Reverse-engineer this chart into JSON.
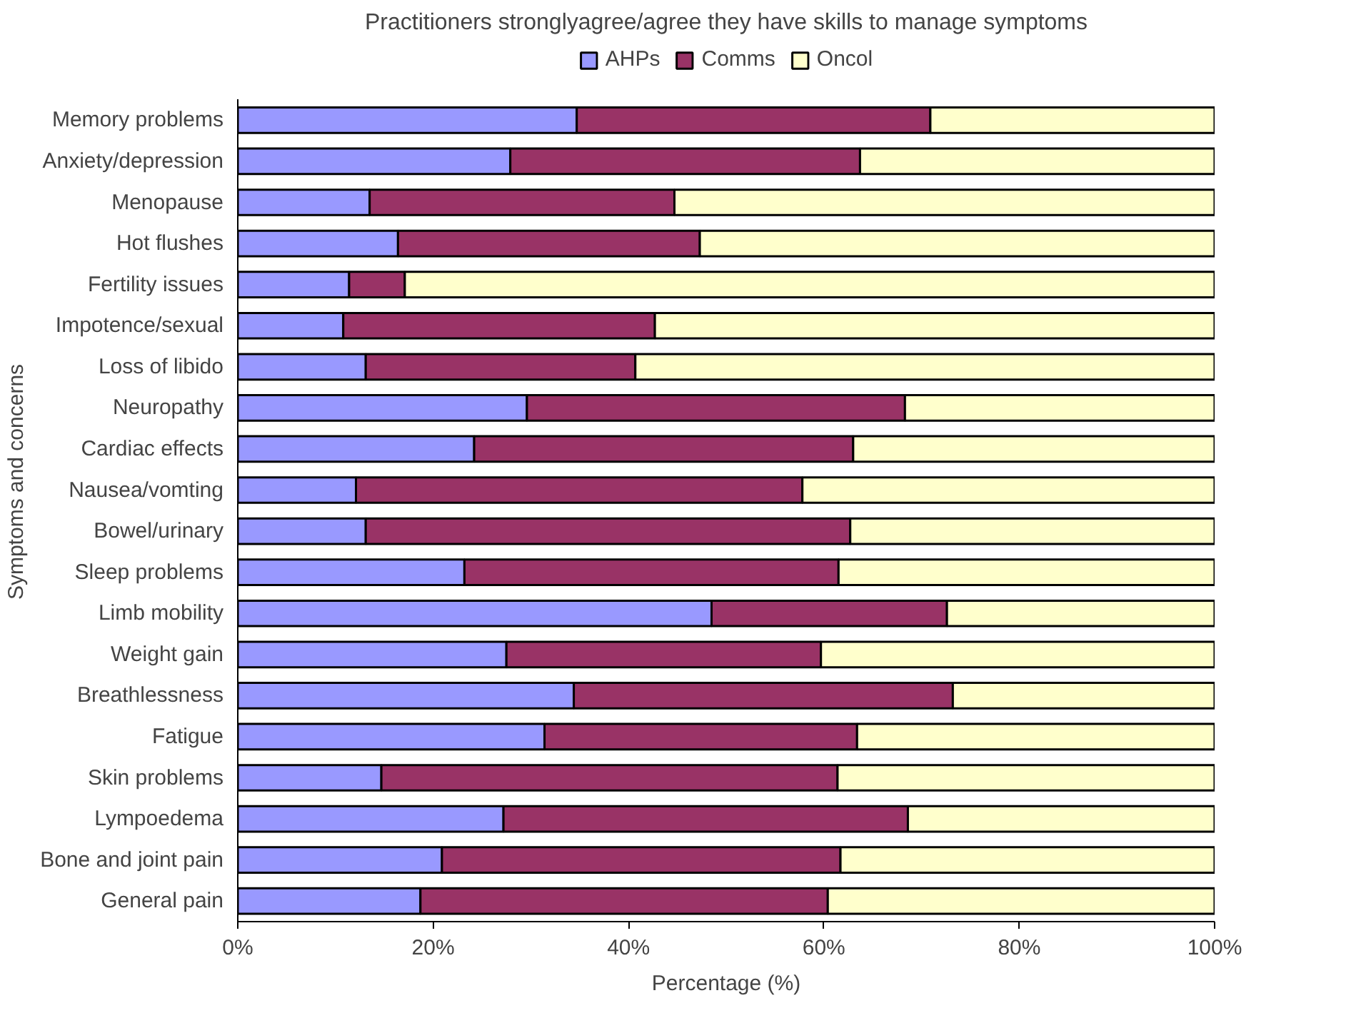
{
  "chart_data": {
    "type": "bar",
    "orientation": "horizontal",
    "stacked": true,
    "title": "Practitioners stronglyagree/agree they have skills to manage symptoms",
    "xlabel": "Percentage (%)",
    "ylabel": "Symptoms and concerns",
    "categories": [
      "Memory problems",
      "Anxiety/depression",
      "Menopause",
      "Hot flushes",
      "Fertility issues",
      "Impotence/sexual",
      "Loss of libido",
      "Neuropathy",
      "Cardiac effects",
      "Nausea/vomting",
      "Bowel/urinary",
      "Sleep problems",
      "Limb mobility",
      "Weight gain",
      "Breathlessness",
      "Fatigue",
      "Skin problems",
      "Lympoedema",
      "Bone and joint pain",
      "General pain"
    ],
    "series": [
      {
        "name": "AHPs",
        "color": "#9999ff",
        "values": [
          34.7,
          27.9,
          13.5,
          16.4,
          11.4,
          10.8,
          13.1,
          29.6,
          24.2,
          12.1,
          13.1,
          23.2,
          48.5,
          27.5,
          34.4,
          31.4,
          14.7,
          27.2,
          20.9,
          18.7
        ]
      },
      {
        "name": "Comms",
        "color": "#993366",
        "values": [
          36.2,
          35.8,
          31.2,
          30.9,
          5.7,
          31.9,
          27.6,
          38.7,
          38.8,
          45.7,
          49.6,
          38.3,
          24.1,
          32.2,
          38.8,
          32.0,
          46.7,
          41.4,
          40.8,
          41.7
        ]
      },
      {
        "name": "Oncol",
        "color": "#ffffcc",
        "values": [
          29.1,
          36.3,
          55.3,
          52.7,
          82.9,
          57.3,
          59.3,
          31.7,
          37.0,
          42.2,
          37.3,
          38.5,
          27.4,
          40.3,
          26.8,
          36.6,
          38.6,
          31.4,
          38.3,
          39.6
        ]
      }
    ],
    "xlim": [
      0,
      100
    ],
    "xticks": [
      {
        "value": 0,
        "label": "0%"
      },
      {
        "value": 20,
        "label": "20%"
      },
      {
        "value": 40,
        "label": "40%"
      },
      {
        "value": 60,
        "label": "60%"
      },
      {
        "value": 80,
        "label": "80%"
      },
      {
        "value": 100,
        "label": "100%"
      }
    ],
    "grid": false,
    "legend": "top"
  }
}
